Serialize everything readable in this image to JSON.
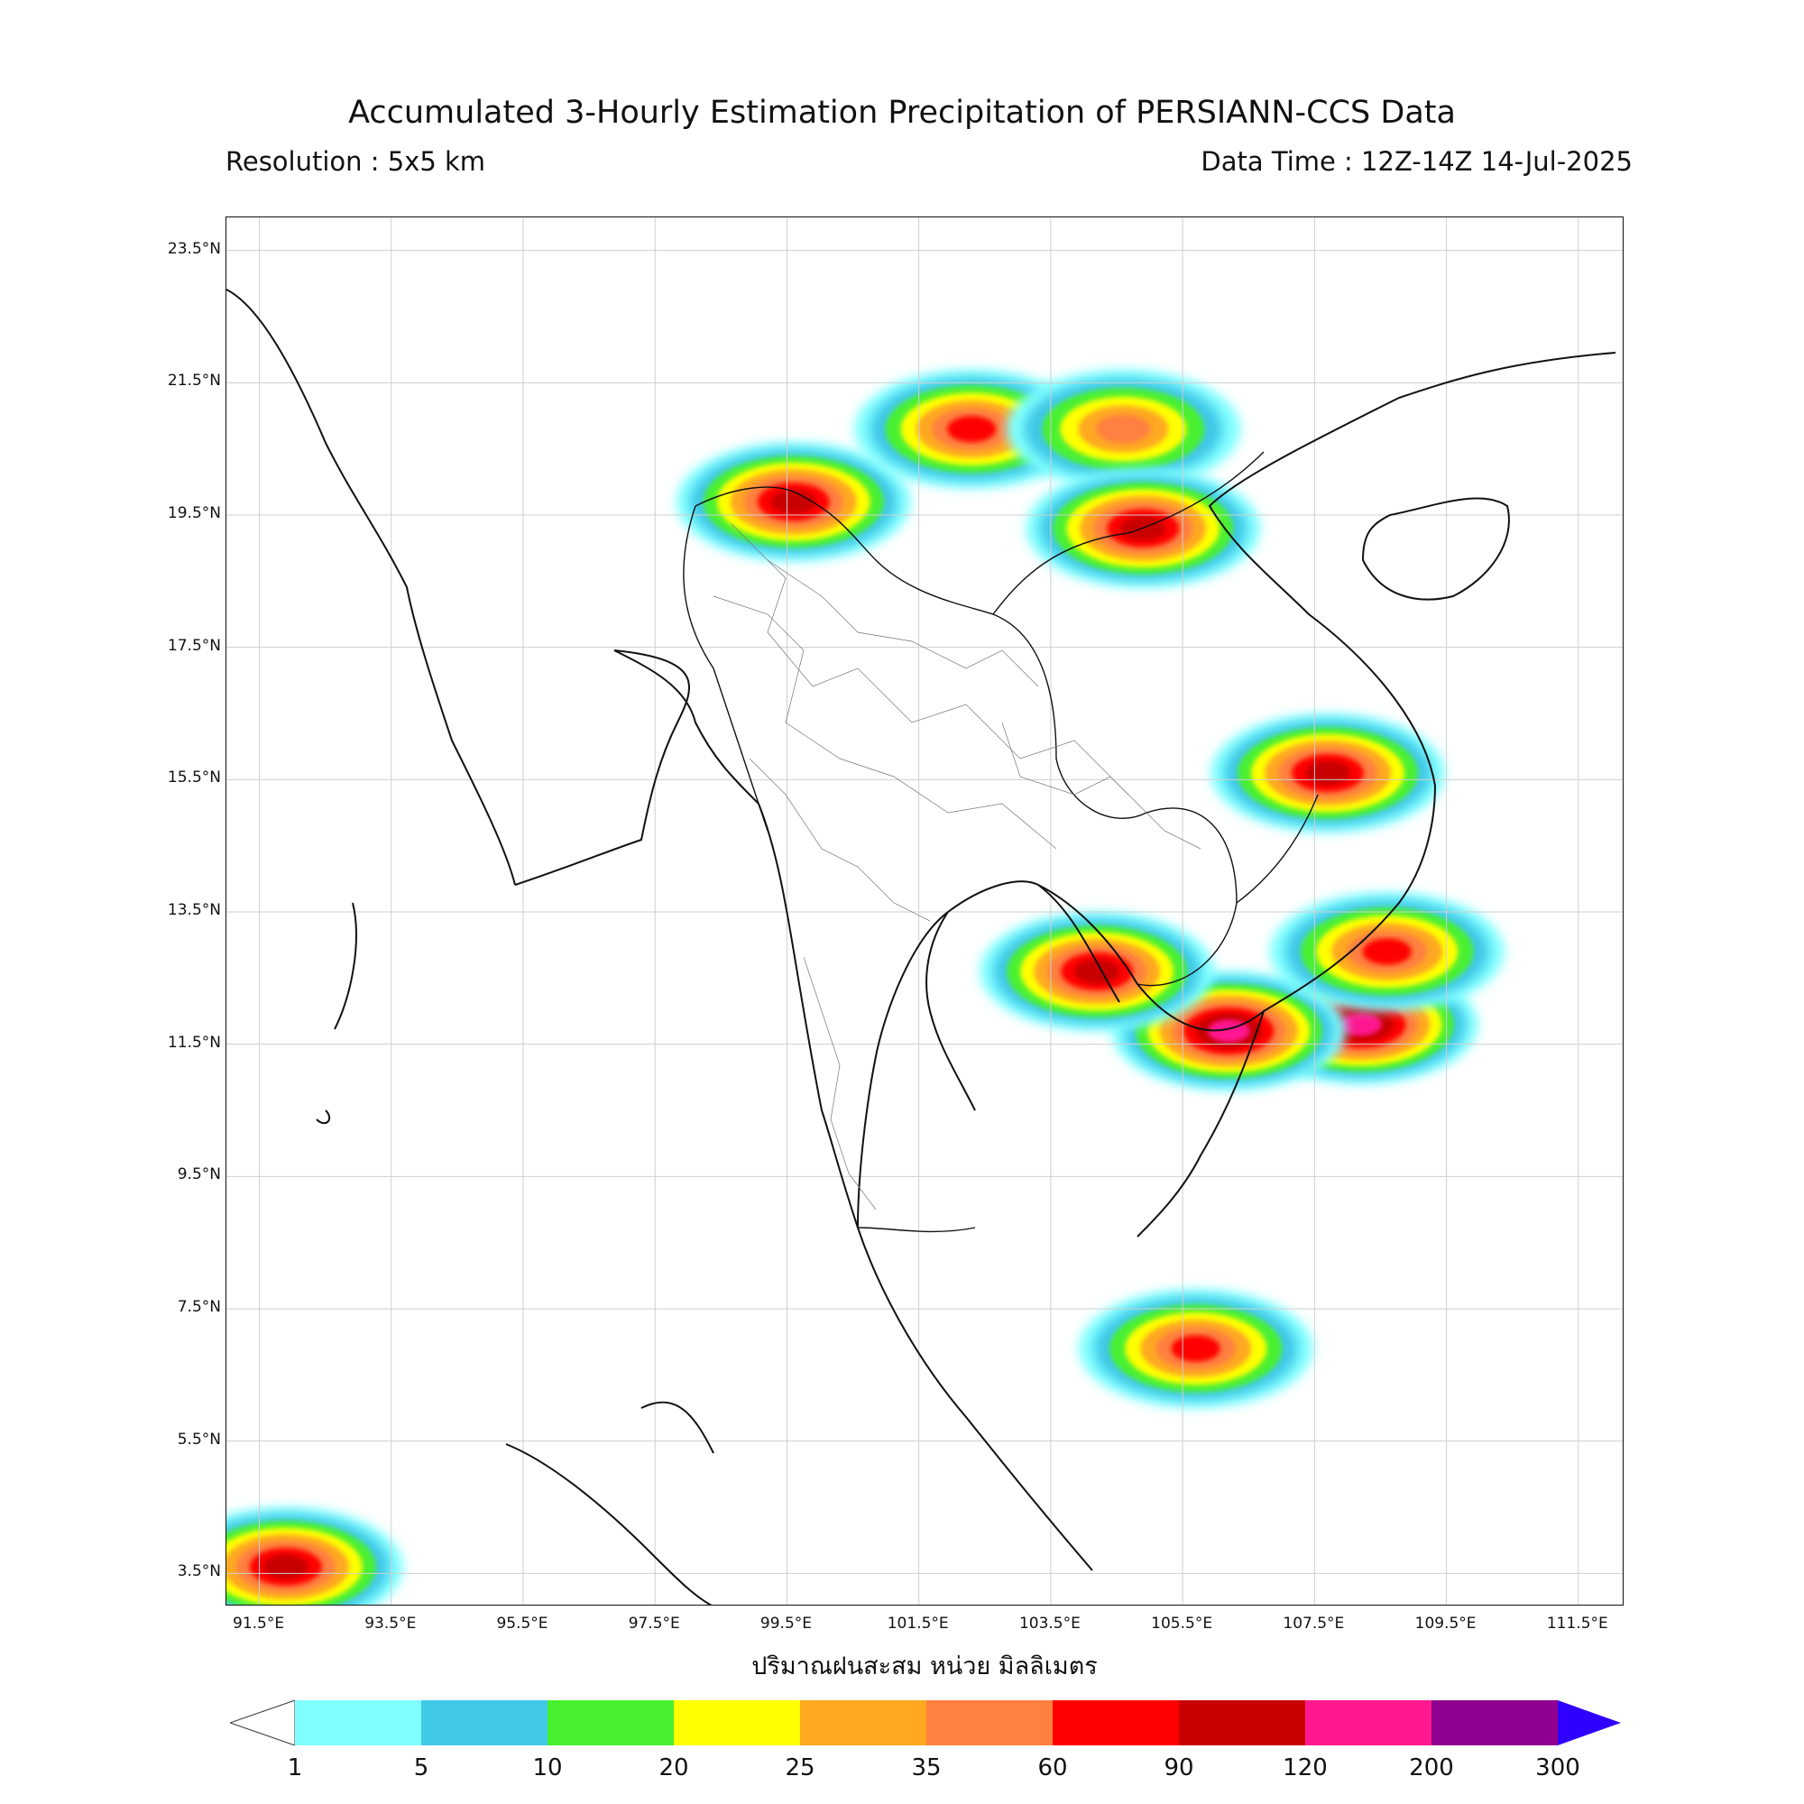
{
  "title": "Accumulated 3-Hourly Estimation Precipitation of PERSIANN-CCS Data",
  "resolution": "Resolution : 5x5 km",
  "data_time": "Data Time : 12Z-14Z 14-Jul-2025",
  "unit_label": "ปริมาณฝนสะสม หน่วย มิลลิเมตร",
  "lat_labels": [
    "23.5°N",
    "21.5°N",
    "19.5°N",
    "17.5°N",
    "15.5°N",
    "13.5°N",
    "11.5°N",
    "9.5°N",
    "7.5°N",
    "5.5°N",
    "3.5°N"
  ],
  "lon_labels": [
    "91.5°E",
    "93.5°E",
    "95.5°E",
    "97.5°E",
    "99.5°E",
    "101.5°E",
    "103.5°E",
    "105.5°E",
    "107.5°E",
    "109.5°E",
    "111.5°E"
  ],
  "colorbar": {
    "thresholds": [
      "1",
      "5",
      "10",
      "20",
      "25",
      "35",
      "60",
      "90",
      "120",
      "200",
      "300"
    ],
    "colors": [
      "#80ffff",
      "#40c8e8",
      "#48f030",
      "#ffff00",
      "#ffa820",
      "#ff8040",
      "#ff0000",
      "#c80000",
      "#ff1890",
      "#900090",
      "#3000ff"
    ]
  },
  "chart_data": {
    "type": "heatmap",
    "map_extent": {
      "lon": [
        91.0,
        112.2
      ],
      "lat": [
        3.0,
        24.0
      ]
    },
    "rain_cells": [
      {
        "lon": 99.6,
        "lat": 19.7,
        "level": 7
      },
      {
        "lon": 102.3,
        "lat": 20.8,
        "level": 6
      },
      {
        "lon": 104.6,
        "lat": 20.8,
        "level": 5
      },
      {
        "lon": 104.9,
        "lat": 19.3,
        "level": 7
      },
      {
        "lon": 107.7,
        "lat": 15.6,
        "level": 7
      },
      {
        "lon": 108.2,
        "lat": 11.8,
        "level": 8
      },
      {
        "lon": 106.2,
        "lat": 11.7,
        "level": 8
      },
      {
        "lon": 104.2,
        "lat": 12.6,
        "level": 7
      },
      {
        "lon": 91.9,
        "lat": 3.6,
        "level": 7
      },
      {
        "lon": 105.7,
        "lat": 6.9,
        "level": 6
      },
      {
        "lon": 108.6,
        "lat": 12.9,
        "level": 6
      }
    ]
  }
}
